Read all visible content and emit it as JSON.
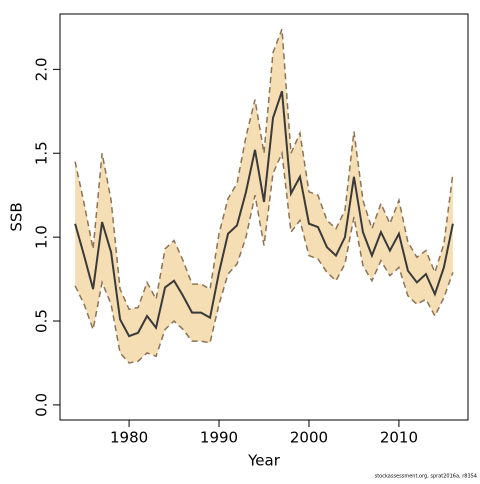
{
  "chart_data": {
    "type": "line",
    "xlabel": "Year",
    "ylabel": "SSB",
    "footer": "stockassessment.org, sprat2016a, r8354",
    "x": [
      1974,
      1975,
      1976,
      1977,
      1978,
      1979,
      1980,
      1981,
      1982,
      1983,
      1984,
      1985,
      1986,
      1987,
      1988,
      1989,
      1990,
      1991,
      1992,
      1993,
      1994,
      1995,
      1996,
      1997,
      1998,
      1999,
      2000,
      2001,
      2002,
      2003,
      2004,
      2005,
      2006,
      2007,
      2008,
      2009,
      2010,
      2011,
      2012,
      2013,
      2014,
      2015,
      2016
    ],
    "values": [
      1.08,
      0.89,
      0.69,
      1.09,
      0.91,
      0.51,
      0.41,
      0.43,
      0.53,
      0.46,
      0.7,
      0.74,
      0.65,
      0.55,
      0.55,
      0.52,
      0.79,
      1.02,
      1.07,
      1.27,
      1.52,
      1.21,
      1.71,
      1.87,
      1.26,
      1.36,
      1.08,
      1.06,
      0.94,
      0.89,
      1.0,
      1.36,
      1.03,
      0.89,
      1.03,
      0.92,
      1.02,
      0.8,
      0.73,
      0.78,
      0.66,
      0.82,
      1.08
    ],
    "upper": [
      1.45,
      1.2,
      0.93,
      1.5,
      1.22,
      0.69,
      0.57,
      0.58,
      0.73,
      0.63,
      0.93,
      0.98,
      0.86,
      0.72,
      0.72,
      0.69,
      1.02,
      1.23,
      1.32,
      1.6,
      1.82,
      1.5,
      2.1,
      2.24,
      1.5,
      1.62,
      1.27,
      1.25,
      1.1,
      1.05,
      1.16,
      1.63,
      1.22,
      1.05,
      1.2,
      1.08,
      1.22,
      0.97,
      0.88,
      0.92,
      0.79,
      0.96,
      1.38
    ],
    "lower": [
      0.71,
      0.6,
      0.45,
      0.73,
      0.6,
      0.31,
      0.25,
      0.26,
      0.31,
      0.29,
      0.45,
      0.5,
      0.45,
      0.38,
      0.38,
      0.37,
      0.6,
      0.78,
      0.84,
      1.0,
      1.25,
      0.95,
      1.38,
      1.5,
      1.03,
      1.1,
      0.89,
      0.87,
      0.79,
      0.74,
      0.84,
      1.12,
      0.83,
      0.74,
      0.86,
      0.77,
      0.82,
      0.65,
      0.6,
      0.63,
      0.53,
      0.64,
      0.79
    ],
    "color": "#3a3a3a",
    "band_color": "#f5deb3",
    "band_line_color": "#8b7355",
    "xlim": [
      1972.32,
      2017.68
    ],
    "xticks": [
      1980,
      1990,
      2000,
      2010
    ],
    "ylim": [
      -0.09,
      2.33
    ],
    "yticks": [
      {
        "value": 0,
        "label": "0.0"
      },
      0.5,
      {
        "value": 1,
        "label": "1.0"
      },
      1.5,
      {
        "value": 2,
        "label": "2.0"
      }
    ]
  }
}
